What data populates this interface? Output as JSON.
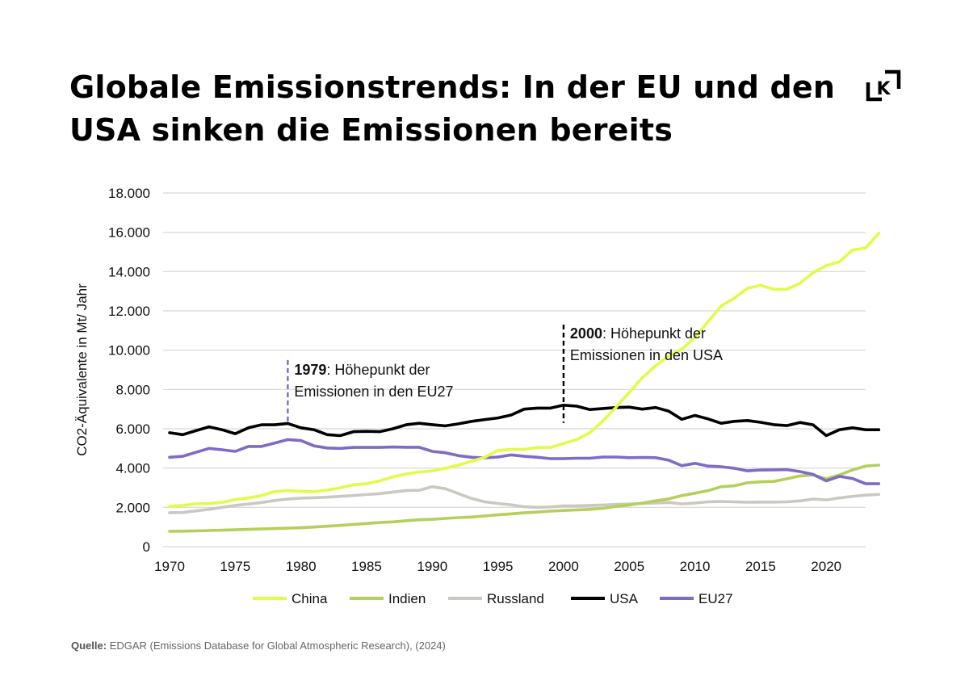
{
  "title": "Globale Emissionstrends: In der EU und den USA sinken die Emissionen bereits",
  "logo": {
    "icon": "k-logo-icon",
    "letter": "K"
  },
  "source": {
    "label": "Quelle:",
    "text": "EDGAR (Emissions Database for Global Atmospheric Research), (2024)"
  },
  "chart_data": {
    "type": "line",
    "ylabel": "CO2-Äquivalente in Mt/ Jahr",
    "xlabel": "",
    "xlim": [
      1970,
      2023
    ],
    "ylim": [
      0,
      18000
    ],
    "grid": true,
    "legend_position": "bottom",
    "x_ticks": [
      1970,
      1975,
      1980,
      1985,
      1990,
      1995,
      2000,
      2005,
      2010,
      2015,
      2020
    ],
    "x_tick_labels": [
      "1970",
      "1975",
      "1980",
      "1985",
      "1990",
      "1995",
      "2000",
      "2005",
      "2010",
      "2015",
      "2020"
    ],
    "y_ticks": [
      0,
      2000,
      4000,
      6000,
      8000,
      10000,
      12000,
      14000,
      16000,
      18000
    ],
    "y_tick_labels": [
      "0",
      "2.000",
      "4.000",
      "6.000",
      "8.000",
      "10.000",
      "12.000",
      "14.000",
      "16.000",
      "18.000"
    ],
    "series": [
      {
        "name": "China",
        "color": "#e3fb48",
        "values": [
          2050,
          2100,
          2180,
          2200,
          2250,
          2400,
          2480,
          2600,
          2800,
          2850,
          2820,
          2800,
          2880,
          3000,
          3150,
          3200,
          3350,
          3550,
          3700,
          3800,
          3850,
          4000,
          4150,
          4350,
          4550,
          4900,
          4950,
          4950,
          5050,
          5050,
          5250,
          5450,
          5800,
          6400,
          7100,
          7850,
          8600,
          9200,
          9700,
          10050,
          10650,
          11450,
          12250,
          12650,
          13150,
          13300,
          13100,
          13100,
          13400,
          13950,
          14300,
          14500,
          15100,
          15200,
          15950
        ]
      },
      {
        "name": "Indien",
        "color": "#b4cf5a",
        "values": [
          780,
          790,
          800,
          820,
          840,
          860,
          880,
          900,
          920,
          940,
          960,
          1000,
          1040,
          1080,
          1130,
          1180,
          1230,
          1260,
          1320,
          1370,
          1390,
          1440,
          1480,
          1510,
          1560,
          1620,
          1670,
          1720,
          1760,
          1810,
          1840,
          1870,
          1900,
          1950,
          2050,
          2120,
          2220,
          2330,
          2430,
          2600,
          2720,
          2850,
          3050,
          3100,
          3250,
          3300,
          3320,
          3450,
          3600,
          3650,
          3450,
          3650,
          3900,
          4100,
          4150
        ]
      },
      {
        "name": "Russland",
        "color": "#cbc8c3",
        "values": [
          1730,
          1740,
          1820,
          1900,
          2000,
          2100,
          2170,
          2250,
          2350,
          2420,
          2470,
          2490,
          2520,
          2560,
          2600,
          2650,
          2700,
          2780,
          2850,
          2870,
          3050,
          2950,
          2700,
          2450,
          2280,
          2200,
          2130,
          2030,
          2000,
          2020,
          2070,
          2080,
          2100,
          2120,
          2150,
          2170,
          2200,
          2220,
          2250,
          2180,
          2220,
          2280,
          2300,
          2280,
          2260,
          2270,
          2270,
          2280,
          2330,
          2420,
          2380,
          2480,
          2560,
          2620,
          2660
        ]
      },
      {
        "name": "USA",
        "color": "#000000",
        "values": [
          5800,
          5700,
          5900,
          6100,
          5950,
          5750,
          6050,
          6200,
          6200,
          6270,
          6050,
          5950,
          5700,
          5650,
          5850,
          5870,
          5850,
          6000,
          6200,
          6280,
          6210,
          6150,
          6250,
          6380,
          6470,
          6550,
          6700,
          7000,
          7050,
          7050,
          7200,
          7150,
          6980,
          7030,
          7080,
          7100,
          7000,
          7080,
          6900,
          6480,
          6680,
          6500,
          6280,
          6380,
          6420,
          6330,
          6210,
          6160,
          6320,
          6200,
          5650,
          5950,
          6050,
          5950,
          5950
        ]
      },
      {
        "name": "EU27",
        "color": "#7f6ac4",
        "values": [
          4550,
          4600,
          4800,
          5000,
          4930,
          4850,
          5100,
          5100,
          5270,
          5450,
          5400,
          5130,
          5020,
          5000,
          5050,
          5050,
          5050,
          5070,
          5060,
          5060,
          4850,
          4780,
          4630,
          4550,
          4520,
          4560,
          4670,
          4600,
          4550,
          4480,
          4480,
          4500,
          4500,
          4560,
          4560,
          4530,
          4540,
          4530,
          4400,
          4120,
          4240,
          4100,
          4070,
          3990,
          3860,
          3900,
          3910,
          3920,
          3820,
          3680,
          3350,
          3580,
          3470,
          3200,
          3200
        ]
      }
    ],
    "annotations": [
      {
        "year": 1979,
        "y_top": 9500,
        "color": "#7f6ac4",
        "bold": "1979",
        "text1": ": Höhepunkt der",
        "text2": "Emissionen in den EU27"
      },
      {
        "year": 2000,
        "y_top": 11300,
        "color": "#000000",
        "bold": "2000",
        "text1": ": Höhepunkt der",
        "text2": "Emissionen in den USA"
      }
    ]
  }
}
